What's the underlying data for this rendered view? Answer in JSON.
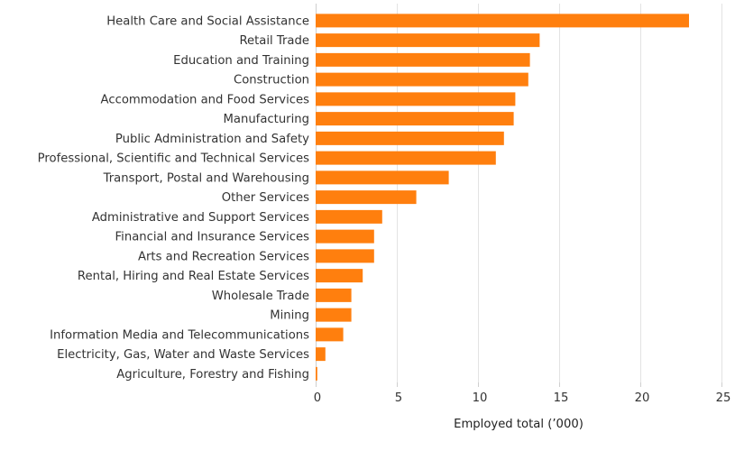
{
  "chart_data": {
    "type": "bar",
    "orientation": "horizontal",
    "title": "",
    "xlabel": "Employed total (’000)",
    "ylabel": "",
    "xlim": [
      0,
      25
    ],
    "xticks": [
      0,
      5,
      10,
      15,
      20,
      25
    ],
    "grid": true,
    "bar_color": "#ff7f0e",
    "categories": [
      "Health Care and Social Assistance",
      "Retail Trade",
      "Education and Training",
      "Construction",
      "Accommodation and Food Services",
      "Manufacturing",
      "Public Administration and Safety",
      "Professional, Scientific and Technical Services",
      "Transport, Postal and Warehousing",
      "Other Services",
      "Administrative and Support Services",
      "Financial and Insurance Services",
      "Arts and Recreation Services",
      "Rental, Hiring and Real Estate Services",
      "Wholesale Trade",
      "Mining",
      "Information Media and Telecommunications",
      "Electricity, Gas, Water and Waste Services",
      "Agriculture, Forestry and Fishing"
    ],
    "values": [
      23.0,
      13.8,
      13.2,
      13.1,
      12.3,
      12.2,
      11.6,
      11.1,
      8.2,
      6.2,
      4.1,
      3.6,
      3.6,
      2.9,
      2.2,
      2.2,
      1.7,
      0.6,
      0.1
    ]
  }
}
